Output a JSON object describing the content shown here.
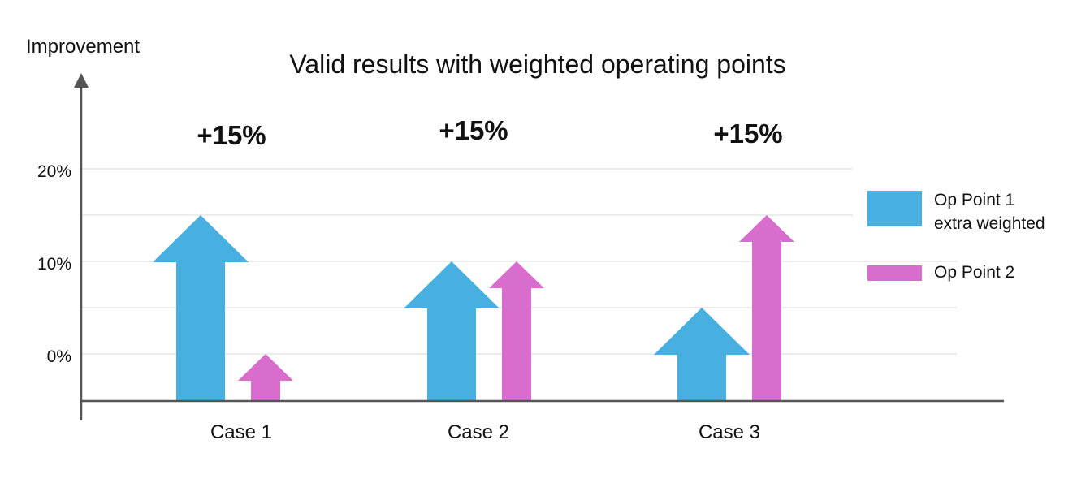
{
  "chart_data": {
    "type": "bar",
    "title": "Valid results with weighted operating points",
    "ylabel": "Improvement",
    "xlabel": "",
    "y_ticks": [
      "20%",
      "10%",
      "0%"
    ],
    "ylim": [
      -5,
      20
    ],
    "grid": true,
    "categories": [
      "Case 1",
      "Case 2",
      "Case 3"
    ],
    "annotations": [
      "+15%",
      "+15%",
      "+15%"
    ],
    "series": [
      {
        "name": "Op Point 1 extra weighted",
        "label_lines": [
          "Op Point 1",
          "extra weighted"
        ],
        "color": "#47B0E0",
        "values": [
          15,
          10,
          5
        ]
      },
      {
        "name": "Op Point 2",
        "label_lines": [
          "Op Point 2"
        ],
        "color": "#D86DCD",
        "values": [
          0,
          10,
          15
        ]
      }
    ],
    "legend_position": "right",
    "mark": "arrow"
  }
}
